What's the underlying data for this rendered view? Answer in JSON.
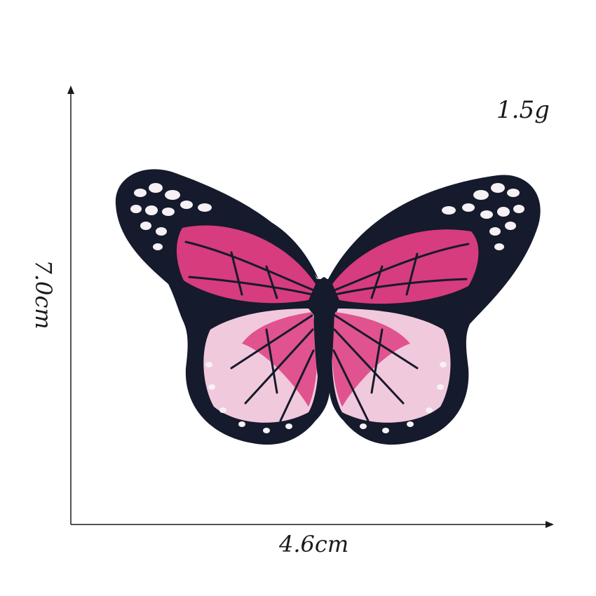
{
  "product": {
    "weight": "1.5g",
    "width": "4.6cm",
    "height": "7.0cm"
  },
  "colors": {
    "outline": "#151a2c",
    "forewing": "#d63c7e",
    "forewing_light": "#e65a96",
    "hindwing_inner": "#e0538f",
    "hindwing_outer": "#f1c9dc",
    "spots": "#f6f1f4",
    "axis": "#1a1a1a"
  },
  "image": {
    "subject": "butterfly-embroidered-patch"
  }
}
